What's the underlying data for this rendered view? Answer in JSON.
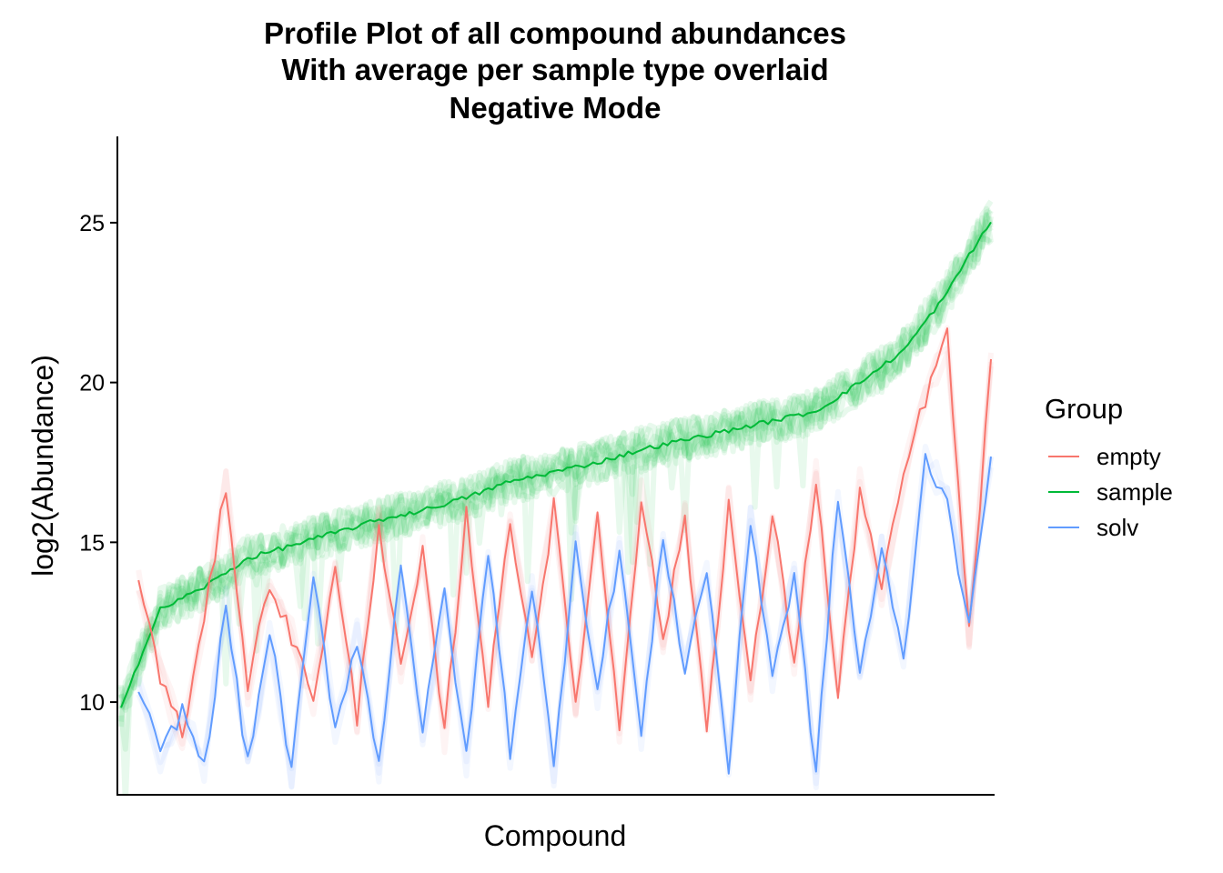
{
  "chart_data": {
    "type": "line",
    "title_lines": [
      "Profile Plot of all compound abundances",
      "With average per sample type overlaid",
      "Negative Mode"
    ],
    "xlabel": "Compound",
    "ylabel": "log2(Abundance)",
    "ylim": [
      7.1,
      27.7
    ],
    "yticks": [
      10,
      15,
      20,
      25
    ],
    "x_range": [
      1,
      200
    ],
    "grid": false,
    "legend": {
      "title": "Group",
      "placement": "right",
      "entries": [
        {
          "name": "empty",
          "color": "#F8766D"
        },
        {
          "name": "sample",
          "color": "#00BA38"
        },
        {
          "name": "solv",
          "color": "#619CFF"
        }
      ]
    },
    "series": [
      {
        "name": "sample",
        "color": "#00BA38",
        "x": [
          1,
          10,
          20,
          30,
          40,
          50,
          60,
          70,
          80,
          90,
          100,
          110,
          120,
          130,
          140,
          150,
          160,
          170,
          180,
          190,
          195,
          200
        ],
        "y": [
          9.9,
          12.9,
          13.6,
          14.5,
          14.9,
          15.3,
          15.7,
          16.0,
          16.4,
          16.9,
          17.2,
          17.5,
          17.9,
          18.2,
          18.5,
          18.8,
          19.1,
          20.0,
          21.0,
          22.8,
          24.0,
          25.0
        ]
      },
      {
        "name": "empty",
        "color": "#F8766D",
        "x": [
          5,
          10,
          15,
          20,
          25,
          30,
          35,
          40,
          45,
          50,
          55,
          60,
          65,
          70,
          75,
          80,
          85,
          90,
          95,
          100,
          105,
          110,
          115,
          120,
          125,
          130,
          135,
          140,
          145,
          150,
          155,
          160,
          165,
          170,
          175,
          180,
          185,
          190,
          195,
          200
        ],
        "y": [
          13.9,
          10.8,
          9.0,
          12.5,
          16.8,
          10.5,
          13.8,
          12.0,
          10.2,
          14.1,
          9.5,
          15.6,
          11.0,
          14.6,
          9.0,
          15.9,
          10.1,
          15.7,
          11.4,
          16.1,
          10.0,
          15.8,
          9.3,
          16.4,
          12.0,
          15.7,
          9.2,
          16.2,
          10.5,
          15.9,
          11.3,
          17.0,
          10.1,
          16.7,
          13.5,
          17.1,
          19.5,
          21.5,
          12.1,
          20.5
        ]
      },
      {
        "name": "solv",
        "color": "#619CFF",
        "x": [
          5,
          10,
          15,
          20,
          25,
          30,
          35,
          40,
          45,
          50,
          55,
          60,
          65,
          70,
          75,
          80,
          85,
          90,
          95,
          100,
          105,
          110,
          115,
          120,
          125,
          130,
          135,
          140,
          145,
          150,
          155,
          160,
          165,
          170,
          175,
          180,
          185,
          190,
          195,
          200
        ],
        "y": [
          10.5,
          8.3,
          9.8,
          7.9,
          13.0,
          8.0,
          12.3,
          7.8,
          13.9,
          9.2,
          12.0,
          8.0,
          14.5,
          9.0,
          13.5,
          8.2,
          14.8,
          8.5,
          13.7,
          7.9,
          15.1,
          10.3,
          14.9,
          8.9,
          15.2,
          11.0,
          14.2,
          7.9,
          15.7,
          10.9,
          13.9,
          7.8,
          16.5,
          10.9,
          14.7,
          11.3,
          17.6,
          16.4,
          12.2,
          17.9
        ]
      }
    ]
  }
}
